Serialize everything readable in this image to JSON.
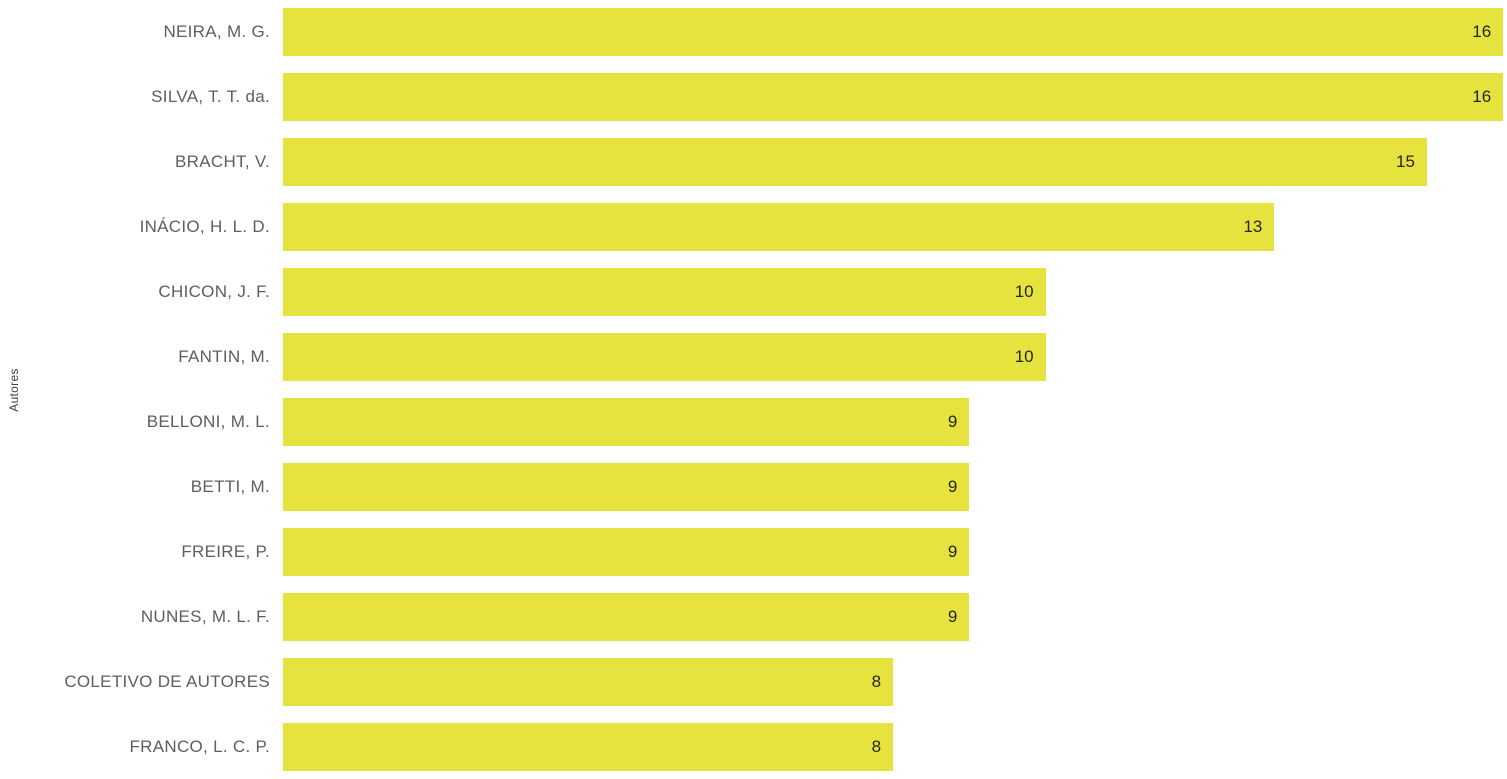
{
  "chart_data": {
    "type": "bar",
    "orientation": "horizontal",
    "title": "",
    "xlabel": "",
    "ylabel": "Autores",
    "xlim": [
      0,
      16.05
    ],
    "grid": false,
    "legend": false,
    "value_labels": "inside-end",
    "categories": [
      "NEIRA, M. G.",
      "SILVA, T. T. da.",
      "BRACHT, V.",
      "INÁCIO, H. L. D.",
      "CHICON, J. F.",
      "FANTIN, M.",
      "BELLONI, M. L.",
      "BETTI, M.",
      "FREIRE, P.",
      "NUNES, M. L. F.",
      "COLETIVO DE AUTORES",
      "FRANCO, L. C. P."
    ],
    "values": [
      16,
      16,
      15,
      13,
      10,
      10,
      9,
      9,
      9,
      9,
      8,
      8
    ],
    "colors": {
      "bar": "#e6e33e",
      "category_label": "#605e5c",
      "value_label": "#252423",
      "axis_title": "#3f3f3f",
      "background": "#ffffff"
    }
  }
}
